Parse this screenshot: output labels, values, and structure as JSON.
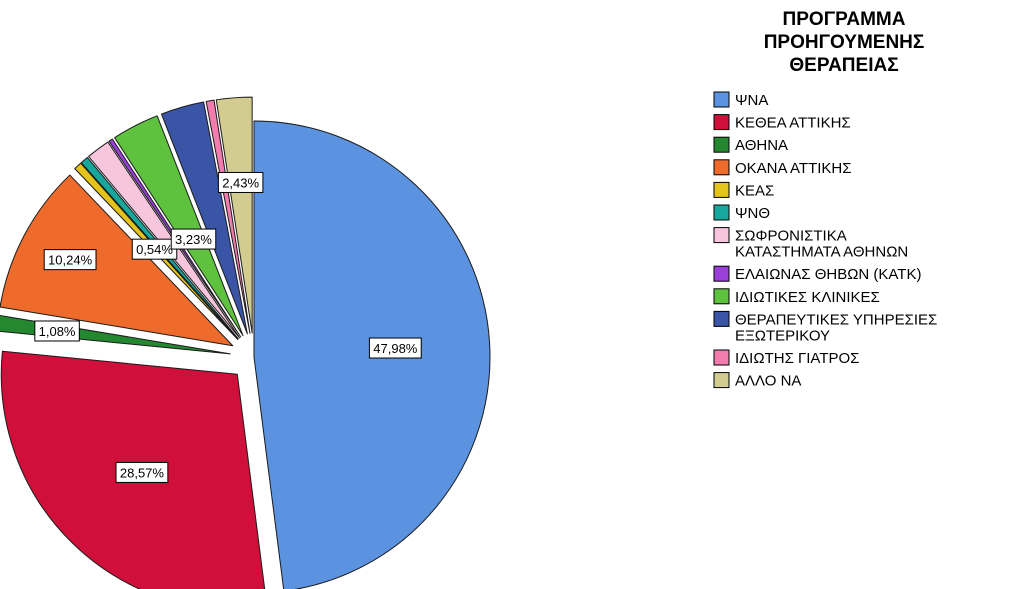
{
  "chart_data": {
    "type": "pie",
    "title": "",
    "legend_title": "ΠΡΟΓΡΑΜΜΑ ΠΡΟΗΓΟΥΜΕΝΗΣ ΘΕΡΑΠΕΙΑΣ",
    "legend_title_lines": [
      "ΠΡΟΓΡΑΜΜΑ",
      "ΠΡΟΗΓΟΥΜΕΝΗΣ",
      "ΘΕΡΑΠΕΙΑΣ"
    ],
    "legend_placement": "right",
    "start": "12 o'clock",
    "direction": "clockwise",
    "slices": [
      {
        "label": "ΨΝΑ",
        "legend_lines": [
          "ΨΝΑ"
        ],
        "value": 47.98,
        "data_label": "47,98%",
        "color": "#5b93e0",
        "exploded": false
      },
      {
        "label": "ΚΕΘΕΑ ΑΤΤΙΚΗΣ",
        "legend_lines": [
          "ΚΕΘΕΑ ΑΤΤΙΚΗΣ"
        ],
        "value": 28.57,
        "data_label": "28,57%",
        "color": "#d0103a",
        "exploded": true
      },
      {
        "label": "ΑΘΗΝΑ",
        "legend_lines": [
          "ΑΘΗΝΑ"
        ],
        "value": 1.08,
        "data_label": "1,08%",
        "color": "#23882f",
        "exploded": true
      },
      {
        "label": "ΟΚΑΝΑ ΑΤΤΙΚΗΣ",
        "legend_lines": [
          "ΟΚΑΝΑ ΑΤΤΙΚΗΣ"
        ],
        "value": 10.24,
        "data_label": "10,24%",
        "color": "#ef6b2c",
        "exploded": true
      },
      {
        "label": "ΚΕΑΣ",
        "legend_lines": [
          "ΚΕΑΣ"
        ],
        "value": 0.54,
        "data_label": "0,54%",
        "color": "#e4c31b",
        "exploded": true
      },
      {
        "label": "ΨΝΘ",
        "legend_lines": [
          "ΨΝΘ"
        ],
        "value": 0.54,
        "data_label": "",
        "color": "#17a79d",
        "exploded": true
      },
      {
        "label": "ΣΩΦΡΟΝΙΣΤΙΚΑ ΚΑΤΑΣΤΗΜΑΤΑ ΑΘΗΝΩΝ",
        "legend_lines": [
          "ΣΩΦΡΟΝΙΣΤΙΚΑ",
          "ΚΑΤΑΣΤΗΜΑΤΑ ΑΘΗΝΩΝ"
        ],
        "value": 1.62,
        "data_label": "",
        "color": "#f7c5de",
        "exploded": true
      },
      {
        "label": "ΕΛΑΙΩΝΑΣ ΘΗΒΩΝ (ΚΑΤΚ)",
        "legend_lines": [
          "ΕΛΑΙΩΝΑΣ ΘΗΒΩΝ (ΚΑΤΚ)"
        ],
        "value": 0.27,
        "data_label": "",
        "color": "#9a3fd8",
        "exploded": true
      },
      {
        "label": "ΙΔΙΩΤΙΚΕΣ ΚΛΙΝΙΚΕΣ",
        "legend_lines": [
          "ΙΔΙΩΤΙΚΕΣ ΚΛΙΝΙΚΕΣ"
        ],
        "value": 3.23,
        "data_label": "3,23%",
        "color": "#5ec23f",
        "exploded": true
      },
      {
        "label": "ΘΕΡΑΠΕΥΤΙΚΕΣ ΥΠΗΡΕΣΙΕΣ ΕΞΩΤΕΡΙΚΟΥ",
        "legend_lines": [
          "ΘΕΡΑΠΕΥΤΙΚΕΣ ΥΠΗΡΕΣΙΕΣ",
          "ΕΞΩΤΕΡΙΚΟΥ"
        ],
        "value": 2.96,
        "data_label": "",
        "color": "#3a54a6",
        "exploded": true
      },
      {
        "label": "ΙΔΙΩΤΗΣ ΓΙΑΤΡΟΣ",
        "legend_lines": [
          "ΙΔΙΩΤΗΣ ΓΙΑΤΡΟΣ"
        ],
        "value": 0.54,
        "data_label": "",
        "color": "#f27cae",
        "exploded": true
      },
      {
        "label": "ΑΛΛΟ ΝΑ",
        "legend_lines": [
          "ΑΛΛΟ ΝΑ"
        ],
        "value": 2.43,
        "data_label": "2,43%",
        "color": "#d3cc91",
        "exploded": true
      }
    ]
  }
}
